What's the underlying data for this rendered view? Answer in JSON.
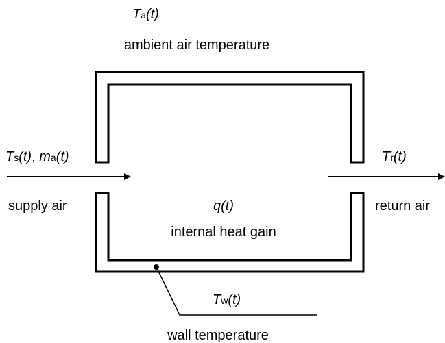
{
  "ambient": {
    "quantity": {
      "symbol": "T",
      "subscript": "a",
      "argument": "(t)"
    },
    "description": "ambient air temperature"
  },
  "supply": {
    "quantities": [
      {
        "symbol": "T",
        "subscript": "s",
        "argument": "(t)"
      },
      {
        "symbol": "m",
        "subscript": "a",
        "argument": "(t)"
      }
    ],
    "separator": ", ",
    "description": "supply air"
  },
  "return": {
    "quantity": {
      "symbol": "T",
      "subscript": "r",
      "argument": "(t)"
    },
    "description": "return air"
  },
  "internal": {
    "quantity": {
      "argument": "q(t)"
    },
    "description": "internal heat gain"
  },
  "wall": {
    "quantity": {
      "symbol": "T",
      "subscript": "w",
      "argument": "(t)"
    },
    "description": "wall temperature"
  }
}
